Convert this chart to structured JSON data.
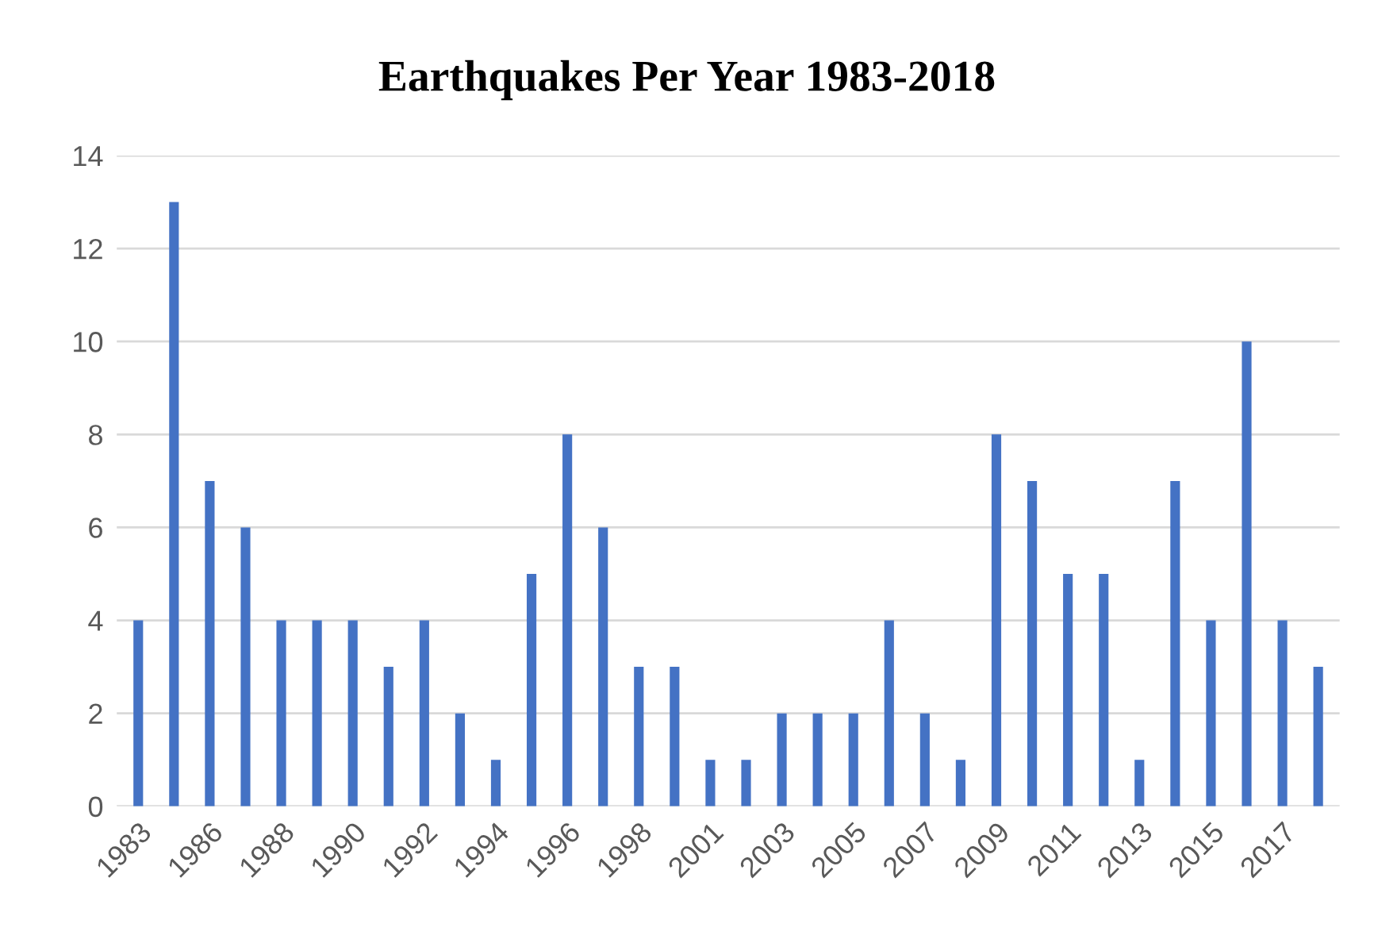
{
  "chart_data": {
    "type": "bar",
    "title": "Earthquakes Per Year 1983-2018",
    "categories": [
      "1983",
      null,
      "1986",
      null,
      "1988",
      null,
      "1990",
      null,
      "1992",
      null,
      "1994",
      null,
      "1996",
      null,
      "1998",
      null,
      "2001",
      null,
      "2003",
      null,
      "2005",
      null,
      "2007",
      null,
      "2009",
      null,
      "2011",
      null,
      "2013",
      null,
      "2015",
      null,
      "2017",
      null
    ],
    "values": [
      4,
      13,
      7,
      6,
      4,
      4,
      4,
      3,
      4,
      2,
      1,
      5,
      8,
      6,
      3,
      3,
      1,
      1,
      2,
      2,
      2,
      4,
      2,
      1,
      8,
      7,
      5,
      5,
      1,
      7,
      4,
      10,
      4,
      3
    ],
    "color": "#4472c4",
    "ylim": [
      0,
      14
    ],
    "yticks": [
      0,
      2,
      4,
      6,
      8,
      10,
      12,
      14
    ],
    "grid": "y",
    "legend": false
  }
}
